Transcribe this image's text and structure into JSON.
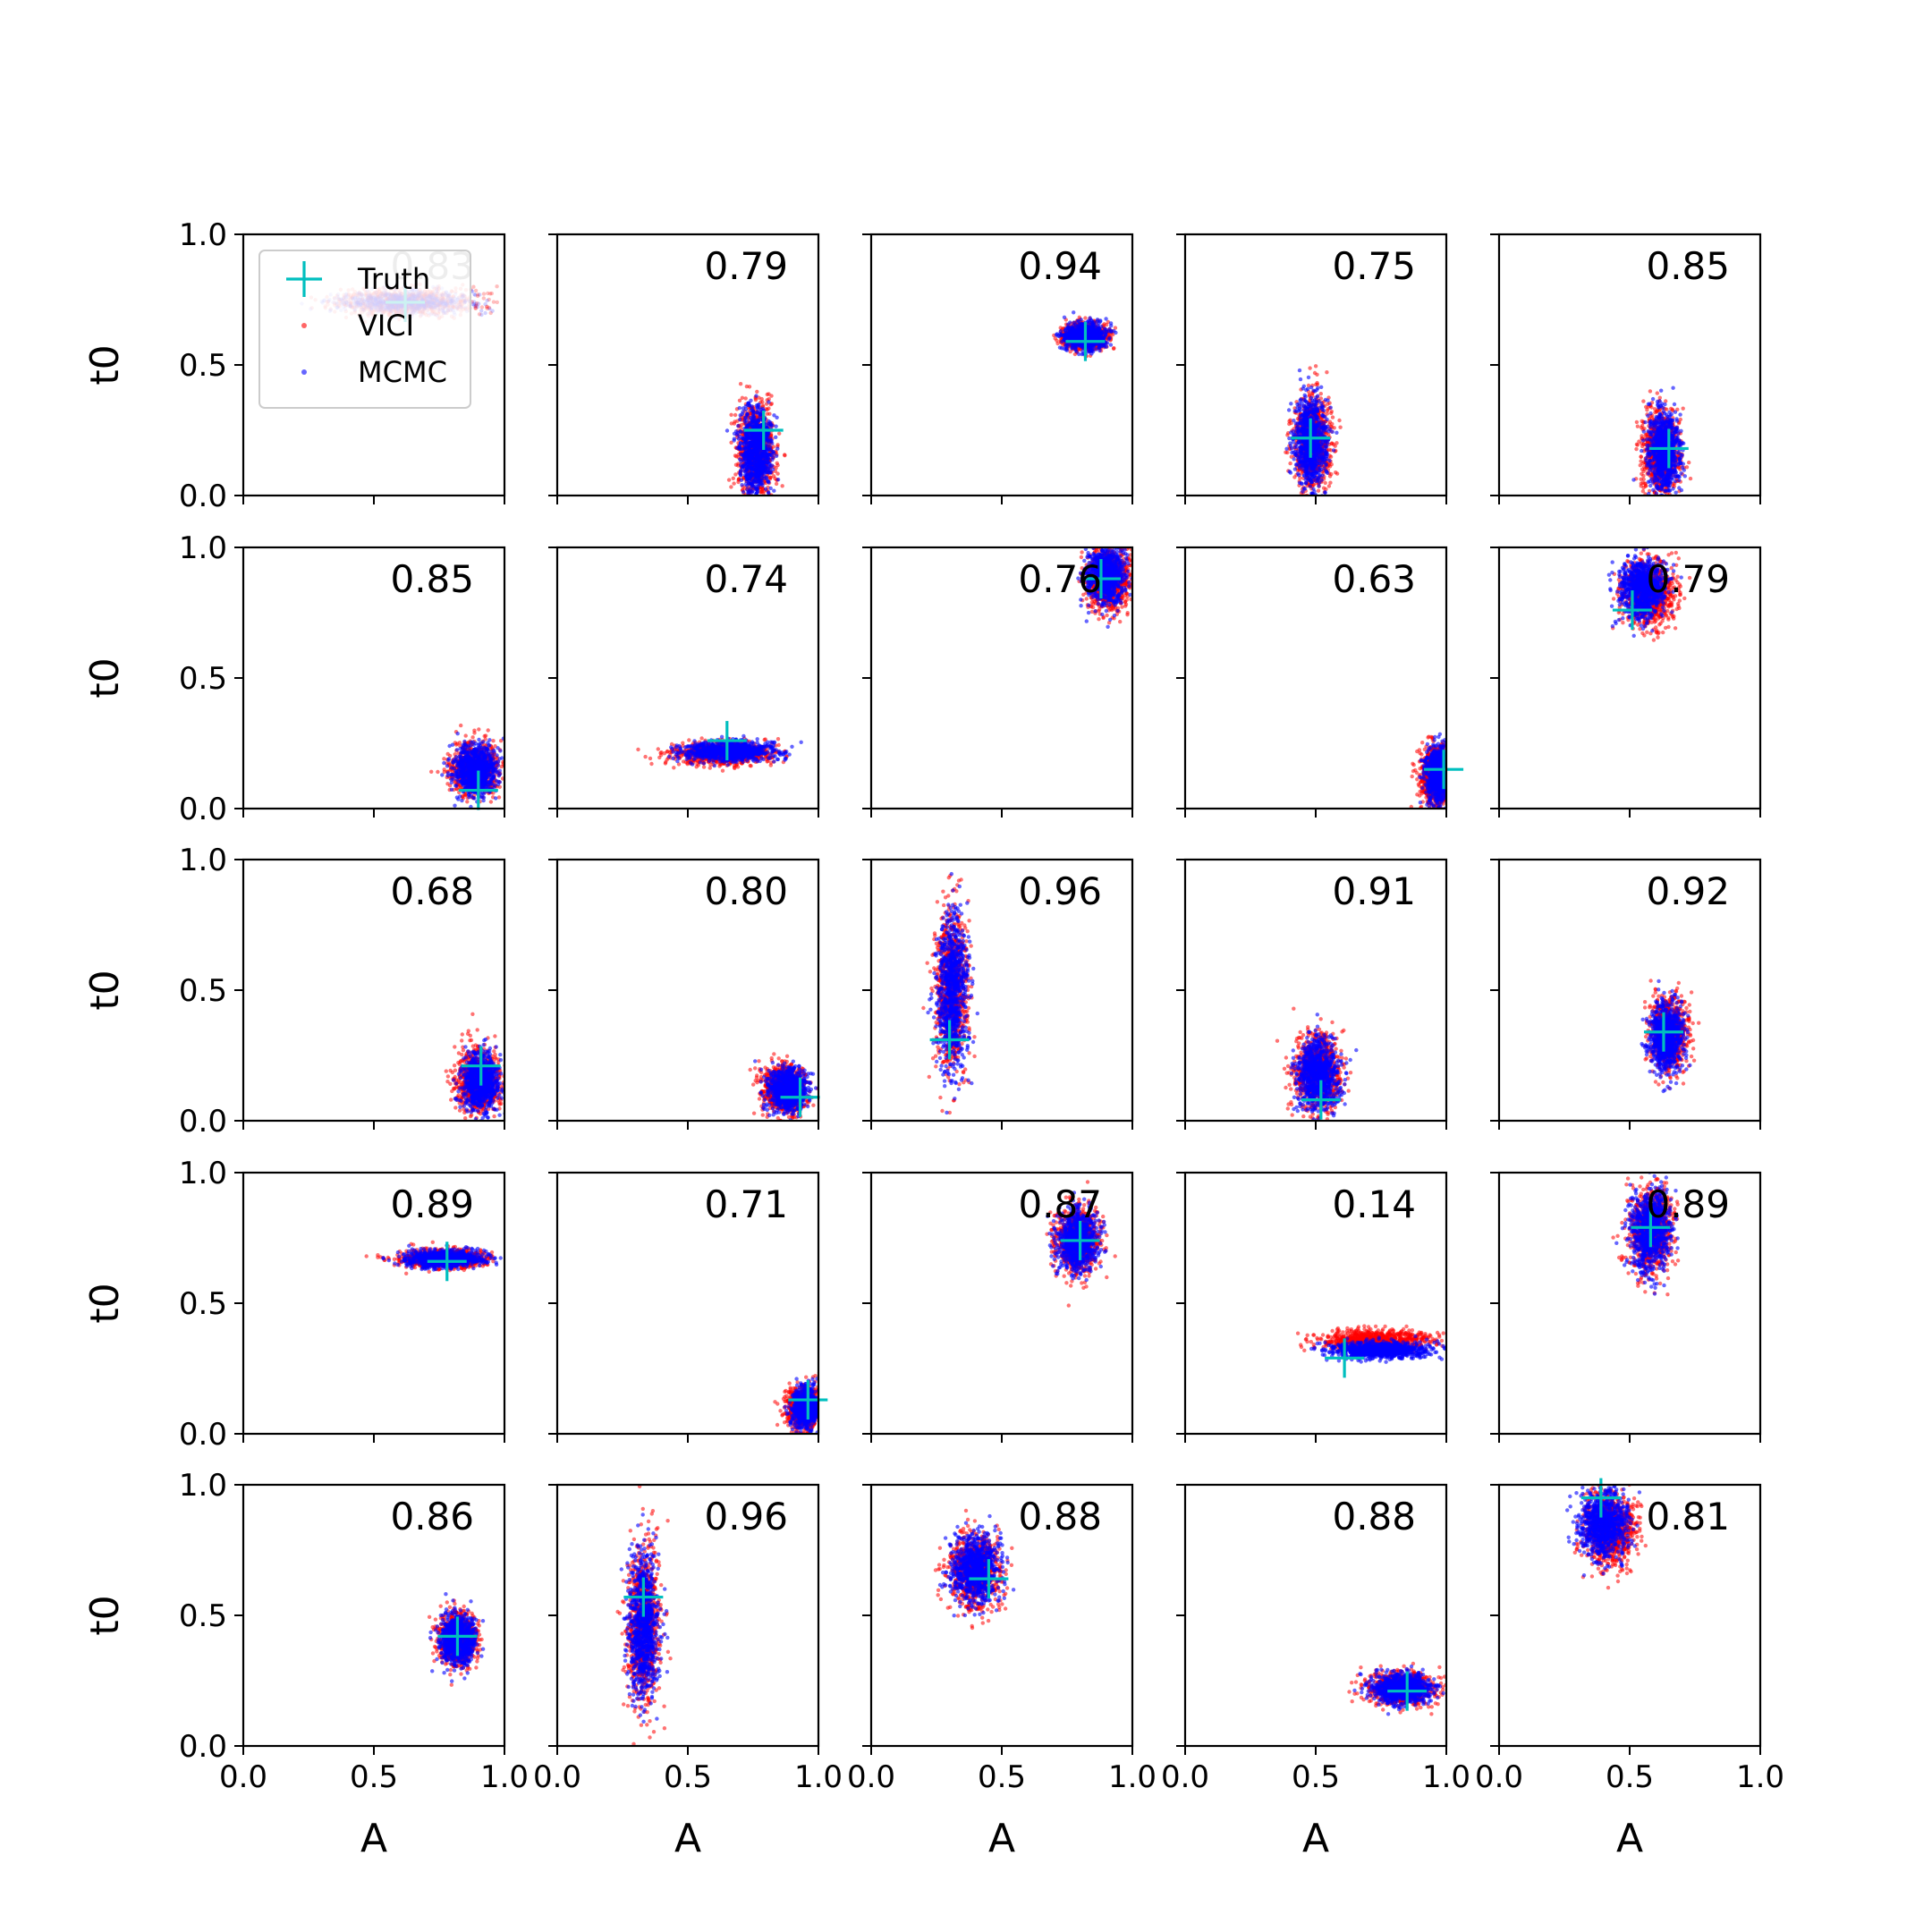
{
  "chart_data": {
    "type": "scatter",
    "layout": {
      "rows": 5,
      "cols": 5
    },
    "xlabel": "A",
    "ylabel": "t0",
    "xlim": [
      0,
      1
    ],
    "ylim": [
      0,
      1
    ],
    "xticks": [
      "0.0",
      "0.5",
      "1.0"
    ],
    "yticks": [
      "0.0",
      "0.5",
      "1.0"
    ],
    "legend": {
      "placement": "top-left",
      "entries": [
        {
          "label": "Truth",
          "marker": "plus",
          "color": "#00bfbf"
        },
        {
          "label": "VICI",
          "marker": "dot",
          "color": "#ff0000"
        },
        {
          "label": "MCMC",
          "marker": "dot",
          "color": "#0000ff"
        }
      ]
    },
    "colors": {
      "truth": "#00bfbf",
      "vici": "#ff0000",
      "mcmc": "#0000ff"
    },
    "panels": [
      {
        "overlap": "0.83",
        "truth": [
          0.62,
          0.74
        ],
        "vici": {
          "center": [
            0.62,
            0.74
          ],
          "spread": [
            0.13,
            0.025
          ]
        },
        "mcmc": {
          "center": [
            0.62,
            0.74
          ],
          "spread": [
            0.12,
            0.02
          ]
        }
      },
      {
        "overlap": "0.79",
        "truth": [
          0.79,
          0.25
        ],
        "vici": {
          "center": [
            0.76,
            0.17
          ],
          "spread": [
            0.035,
            0.09
          ]
        },
        "mcmc": {
          "center": [
            0.76,
            0.17
          ],
          "spread": [
            0.03,
            0.08
          ]
        }
      },
      {
        "overlap": "0.94",
        "truth": [
          0.82,
          0.59
        ],
        "vici": {
          "center": [
            0.82,
            0.61
          ],
          "spread": [
            0.04,
            0.025
          ]
        },
        "mcmc": {
          "center": [
            0.82,
            0.61
          ],
          "spread": [
            0.038,
            0.023
          ]
        }
      },
      {
        "overlap": "0.75",
        "truth": [
          0.48,
          0.22
        ],
        "vici": {
          "center": [
            0.49,
            0.2
          ],
          "spread": [
            0.035,
            0.09
          ]
        },
        "mcmc": {
          "center": [
            0.48,
            0.2
          ],
          "spread": [
            0.03,
            0.085
          ]
        }
      },
      {
        "overlap": "0.85",
        "truth": [
          0.65,
          0.18
        ],
        "vici": {
          "center": [
            0.62,
            0.17
          ],
          "spread": [
            0.035,
            0.08
          ]
        },
        "mcmc": {
          "center": [
            0.63,
            0.17
          ],
          "spread": [
            0.03,
            0.075
          ]
        }
      },
      {
        "overlap": "0.85",
        "truth": [
          0.9,
          0.07
        ],
        "vici": {
          "center": [
            0.89,
            0.15
          ],
          "spread": [
            0.045,
            0.05
          ]
        },
        "mcmc": {
          "center": [
            0.89,
            0.15
          ],
          "spread": [
            0.04,
            0.045
          ]
        }
      },
      {
        "overlap": "0.74",
        "truth": [
          0.65,
          0.26
        ],
        "vici": {
          "center": [
            0.63,
            0.21
          ],
          "spread": [
            0.09,
            0.022
          ]
        },
        "mcmc": {
          "center": [
            0.66,
            0.22
          ],
          "spread": [
            0.08,
            0.018
          ]
        }
      },
      {
        "overlap": "0.76",
        "truth": [
          0.88,
          0.88
        ],
        "vici": {
          "center": [
            0.91,
            0.88
          ],
          "spread": [
            0.04,
            0.06
          ]
        },
        "mcmc": {
          "center": [
            0.9,
            0.89
          ],
          "spread": [
            0.035,
            0.055
          ]
        }
      },
      {
        "overlap": "0.63",
        "truth": [
          0.99,
          0.15
        ],
        "vici": {
          "center": [
            0.96,
            0.12
          ],
          "spread": [
            0.03,
            0.06
          ]
        },
        "mcmc": {
          "center": [
            0.97,
            0.13
          ],
          "spread": [
            0.025,
            0.055
          ]
        }
      },
      {
        "overlap": "0.79",
        "truth": [
          0.51,
          0.76
        ],
        "vici": {
          "center": [
            0.57,
            0.82
          ],
          "spread": [
            0.05,
            0.06
          ]
        },
        "mcmc": {
          "center": [
            0.55,
            0.84
          ],
          "spread": [
            0.045,
            0.055
          ]
        }
      },
      {
        "overlap": "0.68",
        "truth": [
          0.91,
          0.21
        ],
        "vici": {
          "center": [
            0.9,
            0.15
          ],
          "spread": [
            0.04,
            0.06
          ]
        },
        "mcmc": {
          "center": [
            0.91,
            0.15
          ],
          "spread": [
            0.035,
            0.055
          ]
        }
      },
      {
        "overlap": "0.80",
        "truth": [
          0.93,
          0.09
        ],
        "vici": {
          "center": [
            0.87,
            0.12
          ],
          "spread": [
            0.04,
            0.045
          ]
        },
        "mcmc": {
          "center": [
            0.88,
            0.12
          ],
          "spread": [
            0.035,
            0.04
          ]
        }
      },
      {
        "overlap": "0.96",
        "truth": [
          0.3,
          0.31
        ],
        "vici": {
          "center": [
            0.31,
            0.5
          ],
          "spread": [
            0.03,
            0.15
          ]
        },
        "mcmc": {
          "center": [
            0.31,
            0.5
          ],
          "spread": [
            0.028,
            0.14
          ]
        }
      },
      {
        "overlap": "0.91",
        "truth": [
          0.52,
          0.08
        ],
        "vici": {
          "center": [
            0.51,
            0.19
          ],
          "spread": [
            0.045,
            0.07
          ]
        },
        "mcmc": {
          "center": [
            0.51,
            0.18
          ],
          "spread": [
            0.04,
            0.065
          ]
        }
      },
      {
        "overlap": "0.92",
        "truth": [
          0.63,
          0.34
        ],
        "vici": {
          "center": [
            0.65,
            0.33
          ],
          "spread": [
            0.035,
            0.07
          ]
        },
        "mcmc": {
          "center": [
            0.64,
            0.32
          ],
          "spread": [
            0.032,
            0.065
          ]
        }
      },
      {
        "overlap": "0.89",
        "truth": [
          0.78,
          0.66
        ],
        "vici": {
          "center": [
            0.77,
            0.67
          ],
          "spread": [
            0.08,
            0.018
          ]
        },
        "mcmc": {
          "center": [
            0.77,
            0.67
          ],
          "spread": [
            0.075,
            0.016
          ]
        }
      },
      {
        "overlap": "0.71",
        "truth": [
          0.96,
          0.13
        ],
        "vici": {
          "center": [
            0.94,
            0.1
          ],
          "spread": [
            0.03,
            0.04
          ]
        },
        "mcmc": {
          "center": [
            0.95,
            0.1
          ],
          "spread": [
            0.025,
            0.035
          ]
        }
      },
      {
        "overlap": "0.87",
        "truth": [
          0.8,
          0.74
        ],
        "vici": {
          "center": [
            0.79,
            0.74
          ],
          "spread": [
            0.04,
            0.06
          ]
        },
        "mcmc": {
          "center": [
            0.79,
            0.74
          ],
          "spread": [
            0.037,
            0.055
          ]
        }
      },
      {
        "overlap": "0.14",
        "truth": [
          0.61,
          0.29
        ],
        "vici": {
          "center": [
            0.73,
            0.36
          ],
          "spread": [
            0.1,
            0.018
          ]
        },
        "mcmc": {
          "center": [
            0.75,
            0.32
          ],
          "spread": [
            0.09,
            0.015
          ]
        }
      },
      {
        "overlap": "0.89",
        "truth": [
          0.58,
          0.79
        ],
        "vici": {
          "center": [
            0.58,
            0.78
          ],
          "spread": [
            0.04,
            0.08
          ]
        },
        "mcmc": {
          "center": [
            0.58,
            0.78
          ],
          "spread": [
            0.037,
            0.075
          ]
        }
      },
      {
        "overlap": "0.86",
        "truth": [
          0.82,
          0.42
        ],
        "vici": {
          "center": [
            0.82,
            0.41
          ],
          "spread": [
            0.035,
            0.05
          ]
        },
        "mcmc": {
          "center": [
            0.82,
            0.41
          ],
          "spread": [
            0.032,
            0.045
          ]
        }
      },
      {
        "overlap": "0.96",
        "truth": [
          0.33,
          0.57
        ],
        "vici": {
          "center": [
            0.33,
            0.46
          ],
          "spread": [
            0.03,
            0.15
          ]
        },
        "mcmc": {
          "center": [
            0.33,
            0.46
          ],
          "spread": [
            0.028,
            0.14
          ]
        }
      },
      {
        "overlap": "0.88",
        "truth": [
          0.45,
          0.64
        ],
        "vici": {
          "center": [
            0.4,
            0.67
          ],
          "spread": [
            0.05,
            0.07
          ]
        },
        "mcmc": {
          "center": [
            0.4,
            0.68
          ],
          "spread": [
            0.045,
            0.065
          ]
        }
      },
      {
        "overlap": "0.88",
        "truth": [
          0.85,
          0.21
        ],
        "vici": {
          "center": [
            0.83,
            0.22
          ],
          "spread": [
            0.06,
            0.03
          ]
        },
        "mcmc": {
          "center": [
            0.83,
            0.22
          ],
          "spread": [
            0.055,
            0.028
          ]
        }
      },
      {
        "overlap": "0.81",
        "truth": [
          0.39,
          0.95
        ],
        "vici": {
          "center": [
            0.42,
            0.83
          ],
          "spread": [
            0.05,
            0.07
          ]
        },
        "mcmc": {
          "center": [
            0.4,
            0.85
          ],
          "spread": [
            0.045,
            0.065
          ]
        }
      }
    ]
  }
}
